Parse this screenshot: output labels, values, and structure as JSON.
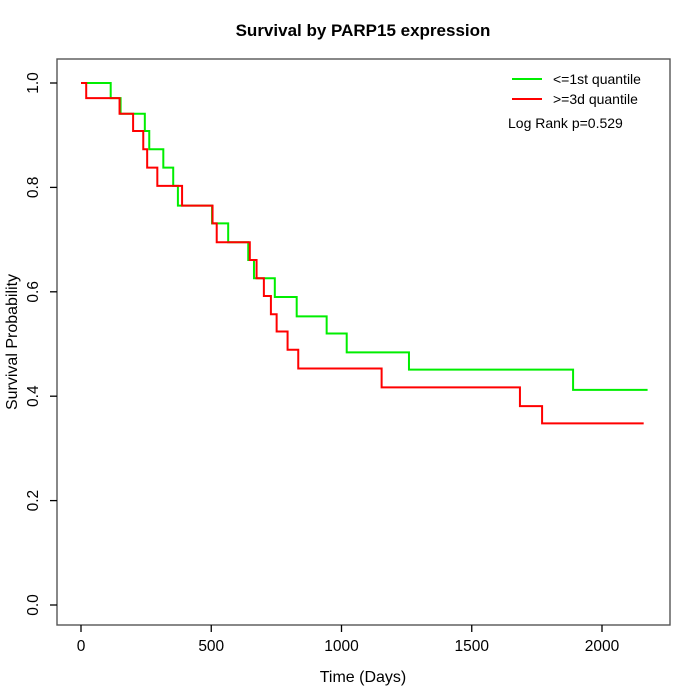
{
  "chart_data": {
    "type": "line",
    "subtype": "kaplan-meier-step-curve",
    "title": "Survival by PARP15 expression",
    "xlabel": "Time (Days)",
    "ylabel": "Survival Probability",
    "xlim": [
      0,
      2260
    ],
    "ylim": [
      0.0,
      1.0
    ],
    "x_ticks": [
      0,
      500,
      1000,
      1500,
      2000
    ],
    "y_ticks": [
      0.0,
      0.2,
      0.4,
      0.6,
      0.8,
      1.0
    ],
    "y_tick_labels": [
      "0.0",
      "0.2",
      "0.4",
      "0.6",
      "0.8",
      "1.0"
    ],
    "grid": false,
    "legend_position": "top-right",
    "annotation": "Log Rank p=0.529",
    "axis_color": "#000000",
    "box_color": "#555555",
    "series": [
      {
        "name": "<=1st quantile",
        "color": "#00ee00",
        "end_time": 2175,
        "steps": [
          [
            0,
            1.0
          ],
          [
            114,
            0.971
          ],
          [
            152,
            0.941
          ],
          [
            245,
            0.908
          ],
          [
            262,
            0.873
          ],
          [
            316,
            0.838
          ],
          [
            354,
            0.803
          ],
          [
            372,
            0.765
          ],
          [
            503,
            0.731
          ],
          [
            565,
            0.695
          ],
          [
            642,
            0.661
          ],
          [
            664,
            0.626
          ],
          [
            744,
            0.59
          ],
          [
            828,
            0.553
          ],
          [
            943,
            0.52
          ],
          [
            1020,
            0.484
          ],
          [
            1259,
            0.451
          ],
          [
            1889,
            0.412
          ]
        ]
      },
      {
        "name": ">=3d quantile",
        "color": "#ff0000",
        "end_time": 2160,
        "steps": [
          [
            0,
            1.0
          ],
          [
            20,
            0.971
          ],
          [
            148,
            0.941
          ],
          [
            200,
            0.908
          ],
          [
            239,
            0.873
          ],
          [
            254,
            0.838
          ],
          [
            293,
            0.803
          ],
          [
            388,
            0.765
          ],
          [
            505,
            0.731
          ],
          [
            521,
            0.695
          ],
          [
            648,
            0.661
          ],
          [
            674,
            0.626
          ],
          [
            702,
            0.592
          ],
          [
            729,
            0.557
          ],
          [
            751,
            0.524
          ],
          [
            793,
            0.489
          ],
          [
            834,
            0.453
          ],
          [
            1154,
            0.417
          ],
          [
            1685,
            0.381
          ],
          [
            1770,
            0.348
          ]
        ]
      }
    ]
  }
}
